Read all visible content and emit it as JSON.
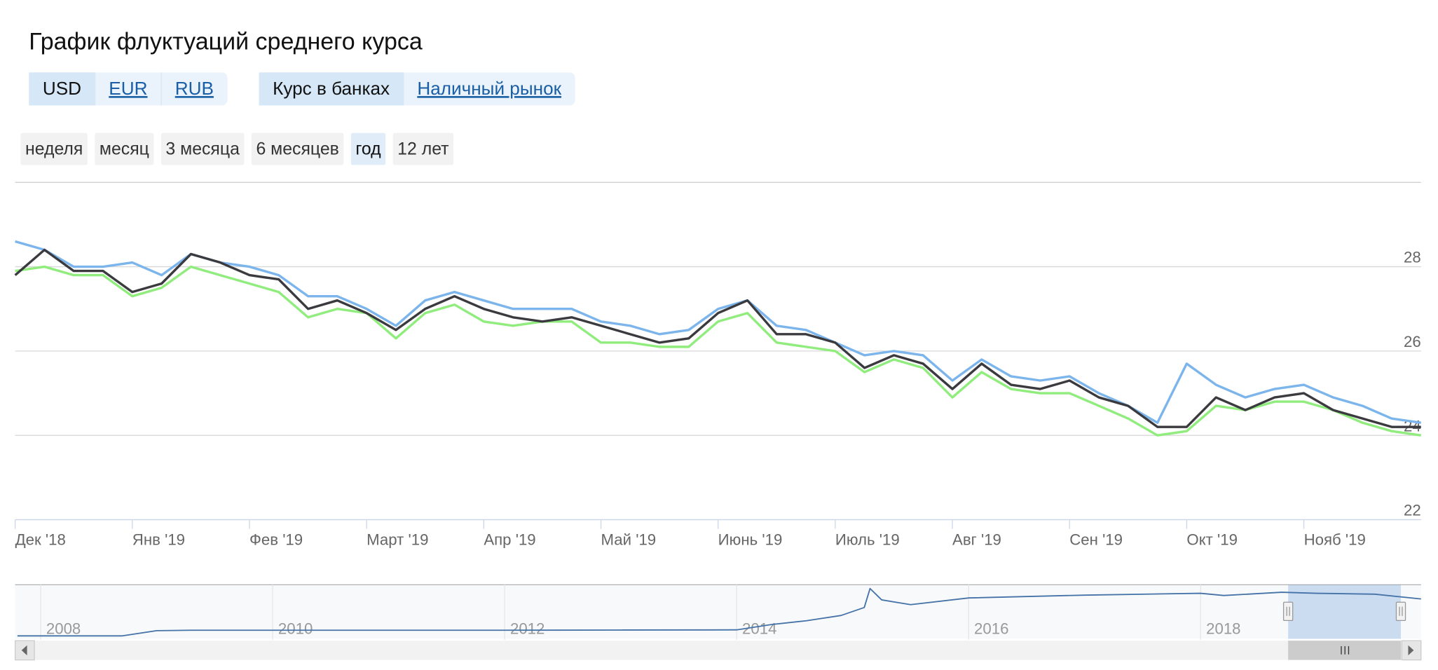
{
  "title": "График флуктуаций среднего курса",
  "currency_tabs": {
    "items": [
      "USD",
      "EUR",
      "RUB"
    ],
    "active": 0
  },
  "market_tabs": {
    "items": [
      "Курс в банках",
      "Наличный рынок"
    ],
    "active": 0
  },
  "period_buttons": {
    "items": [
      "неделя",
      "месяц",
      "3 месяца",
      "6 месяцев",
      "год",
      "12 лет"
    ],
    "active": 4
  },
  "chart_data": [
    {
      "type": "line",
      "categories": [
        "Дек '18",
        null,
        null,
        null,
        "Янв '19",
        null,
        null,
        null,
        "Фев '19",
        null,
        null,
        null,
        "Март '19",
        null,
        null,
        null,
        "Апр '19",
        null,
        null,
        null,
        "Май '19",
        null,
        null,
        null,
        "Июнь '19",
        null,
        null,
        null,
        "Июль '19",
        null,
        null,
        null,
        "Авг '19",
        null,
        null,
        null,
        "Сен '19",
        null,
        null,
        null,
        "Окт '19",
        null,
        null,
        null,
        "Нояб '19",
        null,
        null,
        null,
        null
      ],
      "series": [
        {
          "color": "#7cb5ec",
          "values": [
            28.6,
            28.4,
            28.0,
            28.0,
            28.1,
            27.8,
            28.3,
            28.1,
            28.0,
            27.8,
            27.3,
            27.3,
            27.0,
            26.6,
            27.2,
            27.4,
            27.2,
            27.0,
            27.0,
            27.0,
            26.7,
            26.6,
            26.4,
            26.5,
            27.0,
            27.2,
            26.6,
            26.5,
            26.2,
            25.9,
            26.0,
            25.9,
            25.3,
            25.8,
            25.4,
            25.3,
            25.4,
            25.0,
            24.7,
            24.3,
            25.7,
            25.2,
            24.9,
            25.1,
            25.2,
            24.9,
            24.7,
            24.4,
            24.3
          ]
        },
        {
          "color": "#90ed7d",
          "values": [
            27.9,
            28.0,
            27.8,
            27.8,
            27.3,
            27.5,
            28.0,
            27.8,
            27.6,
            27.4,
            26.8,
            27.0,
            26.9,
            26.3,
            26.9,
            27.1,
            26.7,
            26.6,
            26.7,
            26.7,
            26.2,
            26.2,
            26.1,
            26.1,
            26.7,
            26.9,
            26.2,
            26.1,
            26.0,
            25.5,
            25.8,
            25.6,
            24.9,
            25.5,
            25.1,
            25.0,
            25.0,
            24.7,
            24.4,
            24.0,
            24.1,
            24.7,
            24.6,
            24.8,
            24.8,
            24.6,
            24.3,
            24.1,
            24.0
          ]
        },
        {
          "color": "#3a3a3f",
          "values": [
            27.8,
            28.4,
            27.9,
            27.9,
            27.4,
            27.6,
            28.3,
            28.1,
            27.8,
            27.7,
            27.0,
            27.2,
            26.9,
            26.5,
            27.0,
            27.3,
            27.0,
            26.8,
            26.7,
            26.8,
            26.6,
            26.4,
            26.2,
            26.3,
            26.9,
            27.2,
            26.4,
            26.4,
            26.2,
            25.6,
            25.9,
            25.7,
            25.1,
            25.7,
            25.2,
            25.1,
            25.3,
            24.9,
            24.7,
            24.2,
            24.2,
            24.9,
            24.6,
            24.9,
            25.0,
            24.6,
            24.4,
            24.2,
            24.2
          ]
        }
      ],
      "ylim": [
        22,
        30
      ],
      "yticks": [
        22,
        24,
        26,
        28
      ],
      "grid": true
    },
    {
      "type": "line",
      "x": [
        2007.8,
        2008.7,
        2009.0,
        2009.3,
        2010,
        2011,
        2012,
        2013,
        2014.0,
        2014.3,
        2014.6,
        2014.9,
        2015.1,
        2015.15,
        2015.25,
        2015.5,
        2016,
        2017,
        2018,
        2018.2,
        2018.7,
        2019,
        2019.5,
        2019.9
      ],
      "values": [
        5.05,
        5.05,
        7.8,
        8,
        8,
        8,
        8,
        8.1,
        8.2,
        11,
        13,
        15.8,
        20,
        30,
        24,
        21.5,
        25,
        26.5,
        27.5,
        26.3,
        28,
        27.5,
        27,
        24.5
      ],
      "color": "#4572a7",
      "xlim": [
        2007.78,
        2019.9
      ],
      "xticks": [
        2008,
        2010,
        2012,
        2014,
        2016,
        2018
      ],
      "ylim": [
        3,
        31
      ],
      "grid": true
    }
  ]
}
